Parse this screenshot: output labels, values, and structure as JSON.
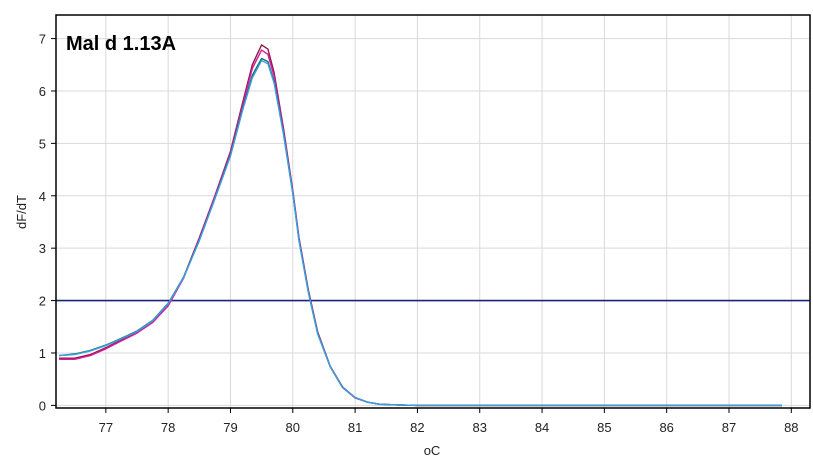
{
  "chart_data": {
    "type": "line",
    "title": "Mal d 1.13A",
    "xlabel": "oC",
    "ylabel": "dF/dT",
    "xlim": [
      76.2,
      88.3
    ],
    "ylim": [
      -0.05,
      7.45
    ],
    "x_ticks": [
      77,
      78,
      79,
      80,
      81,
      82,
      83,
      84,
      85,
      86,
      87,
      88
    ],
    "y_ticks": [
      0,
      1,
      2,
      3,
      4,
      5,
      6,
      7
    ],
    "grid": true,
    "threshold": {
      "y": 2,
      "color": "#1a237e"
    },
    "series": [
      {
        "color": "#8b1a4a",
        "points": [
          [
            76.25,
            0.9
          ],
          [
            76.5,
            0.9
          ],
          [
            76.75,
            0.97
          ],
          [
            77.0,
            1.1
          ],
          [
            77.25,
            1.25
          ],
          [
            77.5,
            1.4
          ],
          [
            77.75,
            1.6
          ],
          [
            78.0,
            1.92
          ],
          [
            78.25,
            2.45
          ],
          [
            78.5,
            3.2
          ],
          [
            78.75,
            4.0
          ],
          [
            79.0,
            4.85
          ],
          [
            79.2,
            5.8
          ],
          [
            79.35,
            6.5
          ],
          [
            79.5,
            6.88
          ],
          [
            79.6,
            6.8
          ],
          [
            79.7,
            6.35
          ],
          [
            79.85,
            5.3
          ],
          [
            80.0,
            4.1
          ],
          [
            80.1,
            3.2
          ],
          [
            80.25,
            2.2
          ],
          [
            80.4,
            1.4
          ],
          [
            80.6,
            0.75
          ],
          [
            80.8,
            0.35
          ],
          [
            81.0,
            0.15
          ],
          [
            81.2,
            0.06
          ],
          [
            81.4,
            0.02
          ],
          [
            81.7,
            0.01
          ],
          [
            82.0,
            0.0
          ],
          [
            85.0,
            0.0
          ],
          [
            87.85,
            0.0
          ]
        ]
      },
      {
        "color": "#d81b9c",
        "points": [
          [
            76.25,
            0.88
          ],
          [
            76.5,
            0.88
          ],
          [
            76.75,
            0.95
          ],
          [
            77.0,
            1.08
          ],
          [
            77.25,
            1.23
          ],
          [
            77.5,
            1.38
          ],
          [
            77.75,
            1.58
          ],
          [
            78.0,
            1.9
          ],
          [
            78.25,
            2.43
          ],
          [
            78.5,
            3.18
          ],
          [
            78.75,
            3.98
          ],
          [
            79.0,
            4.82
          ],
          [
            79.2,
            5.75
          ],
          [
            79.35,
            6.43
          ],
          [
            79.5,
            6.78
          ],
          [
            79.6,
            6.7
          ],
          [
            79.7,
            6.28
          ],
          [
            79.85,
            5.25
          ],
          [
            80.0,
            4.07
          ],
          [
            80.1,
            3.18
          ],
          [
            80.25,
            2.18
          ],
          [
            80.4,
            1.38
          ],
          [
            80.6,
            0.74
          ],
          [
            80.8,
            0.34
          ],
          [
            81.0,
            0.14
          ],
          [
            81.2,
            0.06
          ],
          [
            81.4,
            0.02
          ],
          [
            81.7,
            0.01
          ],
          [
            82.0,
            0.0
          ],
          [
            85.0,
            0.0
          ],
          [
            87.85,
            0.0
          ]
        ]
      },
      {
        "color": "#0e6e70",
        "points": [
          [
            76.25,
            0.95
          ],
          [
            76.5,
            0.98
          ],
          [
            76.75,
            1.05
          ],
          [
            77.0,
            1.15
          ],
          [
            77.25,
            1.28
          ],
          [
            77.5,
            1.42
          ],
          [
            77.75,
            1.62
          ],
          [
            78.0,
            1.95
          ],
          [
            78.25,
            2.45
          ],
          [
            78.5,
            3.15
          ],
          [
            78.75,
            3.95
          ],
          [
            79.0,
            4.78
          ],
          [
            79.2,
            5.68
          ],
          [
            79.35,
            6.3
          ],
          [
            79.5,
            6.62
          ],
          [
            79.6,
            6.56
          ],
          [
            79.7,
            6.18
          ],
          [
            79.85,
            5.2
          ],
          [
            80.0,
            4.05
          ],
          [
            80.1,
            3.15
          ],
          [
            80.25,
            2.16
          ],
          [
            80.4,
            1.37
          ],
          [
            80.6,
            0.74
          ],
          [
            80.8,
            0.34
          ],
          [
            81.0,
            0.15
          ],
          [
            81.2,
            0.06
          ],
          [
            81.4,
            0.02
          ],
          [
            81.7,
            0.01
          ],
          [
            82.0,
            0.0
          ],
          [
            85.0,
            0.0
          ],
          [
            87.85,
            0.0
          ]
        ]
      },
      {
        "color": "#3aa0e0",
        "points": [
          [
            76.25,
            0.95
          ],
          [
            76.5,
            0.97
          ],
          [
            76.75,
            1.04
          ],
          [
            77.0,
            1.14
          ],
          [
            77.25,
            1.27
          ],
          [
            77.5,
            1.41
          ],
          [
            77.75,
            1.61
          ],
          [
            78.0,
            1.94
          ],
          [
            78.25,
            2.44
          ],
          [
            78.5,
            3.14
          ],
          [
            78.75,
            3.94
          ],
          [
            79.0,
            4.76
          ],
          [
            79.2,
            5.65
          ],
          [
            79.35,
            6.25
          ],
          [
            79.5,
            6.58
          ],
          [
            79.6,
            6.52
          ],
          [
            79.7,
            6.15
          ],
          [
            79.85,
            5.18
          ],
          [
            80.0,
            4.04
          ],
          [
            80.1,
            3.14
          ],
          [
            80.25,
            2.15
          ],
          [
            80.4,
            1.36
          ],
          [
            80.6,
            0.74
          ],
          [
            80.8,
            0.34
          ],
          [
            81.0,
            0.15
          ],
          [
            81.2,
            0.06
          ],
          [
            81.4,
            0.02
          ],
          [
            81.7,
            0.01
          ],
          [
            82.0,
            0.0
          ],
          [
            85.0,
            0.0
          ],
          [
            87.85,
            0.0
          ]
        ]
      }
    ]
  }
}
